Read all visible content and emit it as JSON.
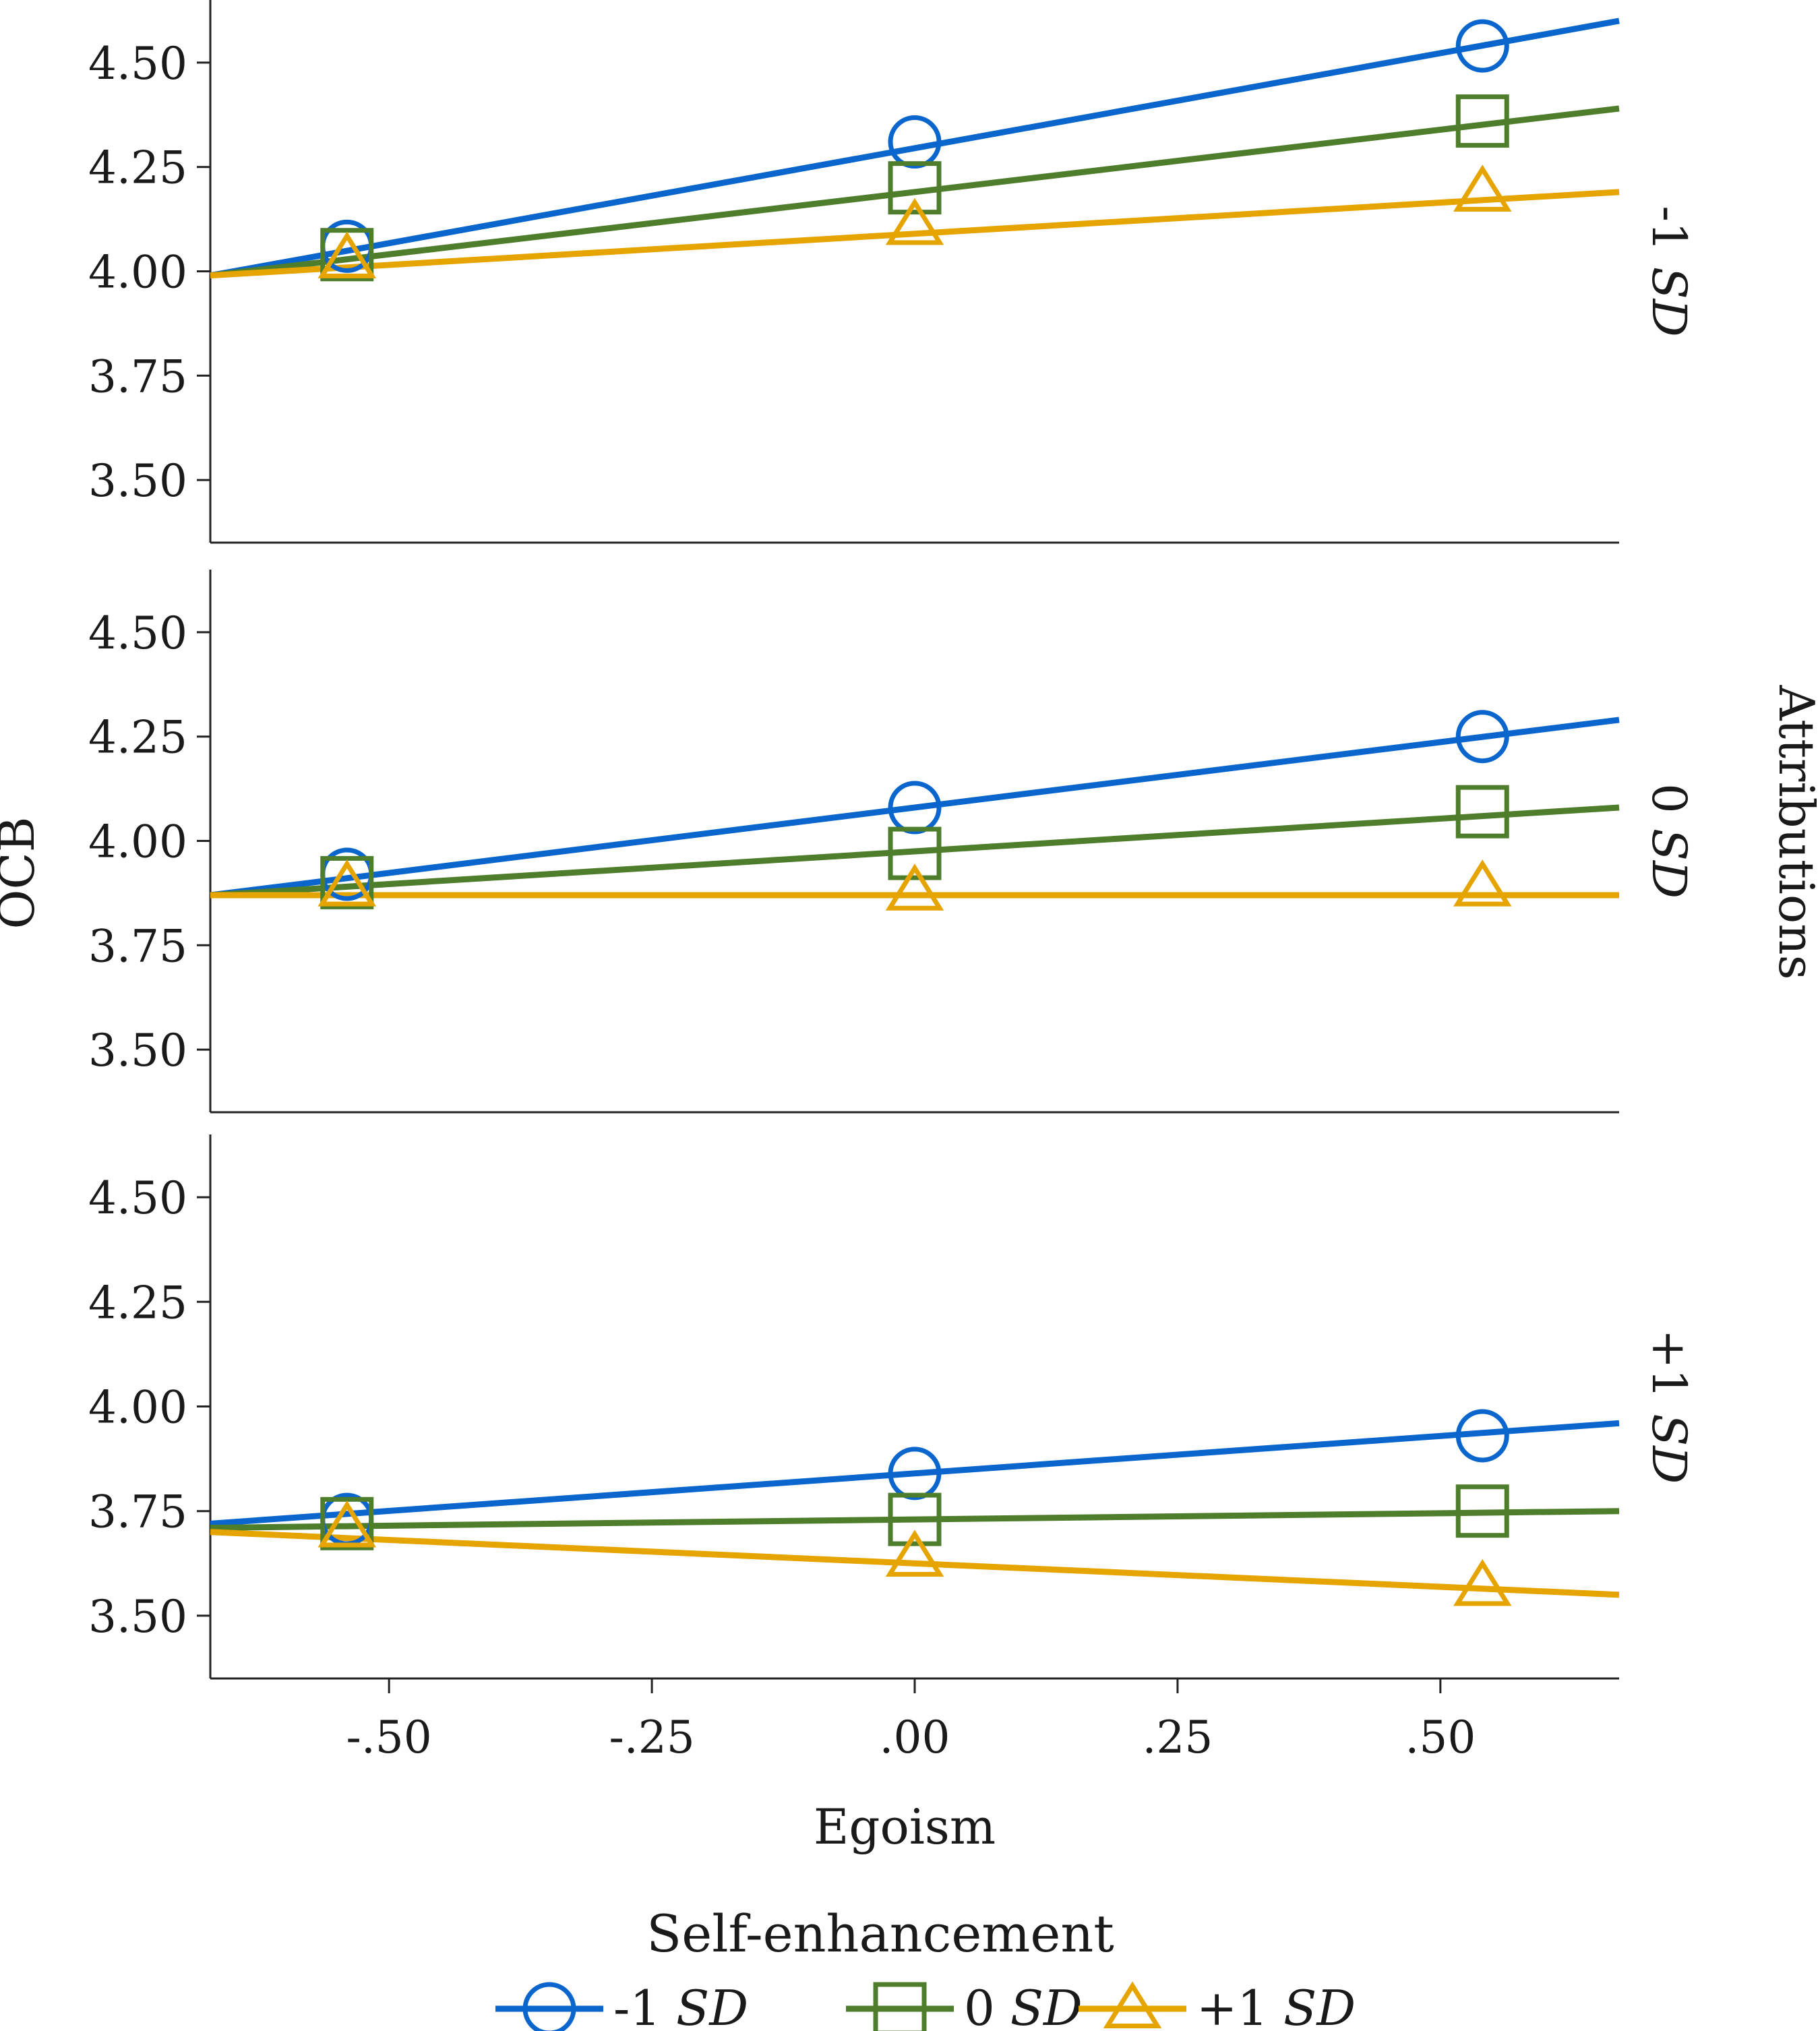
{
  "chart_data": {
    "type": "line",
    "xlabel": "Egoism",
    "ylabel": "OCB",
    "facet_title": "Attributions",
    "xlim": [
      -0.67,
      0.67
    ],
    "ylim": [
      3.35,
      4.65
    ],
    "x_ticks": [
      -0.5,
      -0.25,
      0.0,
      0.25,
      0.5
    ],
    "x_tick_labels": [
      "-.50",
      "-.25",
      ".00",
      ".25",
      ".50"
    ],
    "y_ticks": [
      3.5,
      3.75,
      4.0,
      4.25,
      4.5
    ],
    "y_tick_labels": [
      "3.50",
      "3.75",
      "4.00",
      "4.25",
      "4.50"
    ],
    "legend": {
      "title": "Self-enhancement",
      "placement": "bottom",
      "entries": [
        {
          "prefix": "-1 ",
          "unit": "SD",
          "color": "#0a66cc",
          "marker": "circle"
        },
        {
          "prefix": "0 ",
          "unit": "SD",
          "color": "#4e7d2c",
          "marker": "square"
        },
        {
          "prefix": "+1 ",
          "unit": "SD",
          "color": "#e6a400",
          "marker": "triangle"
        }
      ]
    },
    "marker_x": [
      -0.54,
      0.0,
      0.54
    ],
    "panels": [
      {
        "facet_prefix": "-1 ",
        "facet_unit": "SD",
        "series": [
          {
            "name": "-1 SD",
            "color": "#0a66cc",
            "marker": "circle",
            "line": [
              [
                -0.67,
                3.99
              ],
              [
                0.67,
                4.6
              ]
            ],
            "points": [
              4.06,
              4.31,
              4.54
            ]
          },
          {
            "name": "0 SD",
            "color": "#4e7d2c",
            "marker": "square",
            "line": [
              [
                -0.67,
                3.99
              ],
              [
                0.67,
                4.39
              ]
            ],
            "points": [
              4.04,
              4.2,
              4.36
            ]
          },
          {
            "name": "+1 SD",
            "color": "#e6a400",
            "marker": "triangle",
            "line": [
              [
                -0.67,
                3.99
              ],
              [
                0.67,
                4.19
              ]
            ],
            "points": [
              4.03,
              4.11,
              4.19
            ]
          }
        ]
      },
      {
        "facet_prefix": "0 ",
        "facet_unit": "SD",
        "series": [
          {
            "name": "-1 SD",
            "color": "#0a66cc",
            "marker": "circle",
            "line": [
              [
                -0.67,
                3.87
              ],
              [
                0.67,
                4.29
              ]
            ],
            "points": [
              3.92,
              4.08,
              4.25
            ]
          },
          {
            "name": "0 SD",
            "color": "#4e7d2c",
            "marker": "square",
            "line": [
              [
                -0.67,
                3.87
              ],
              [
                0.67,
                4.08
              ]
            ],
            "points": [
              3.9,
              3.97,
              4.07
            ]
          },
          {
            "name": "+1 SD",
            "color": "#e6a400",
            "marker": "triangle",
            "line": [
              [
                -0.67,
                3.87
              ],
              [
                0.67,
                3.87
              ]
            ],
            "points": [
              3.89,
              3.88,
              3.89
            ]
          }
        ]
      },
      {
        "facet_prefix": "+1 ",
        "facet_unit": "SD",
        "series": [
          {
            "name": "-1 SD",
            "color": "#0a66cc",
            "marker": "circle",
            "line": [
              [
                -0.67,
                3.72
              ],
              [
                0.67,
                3.96
              ]
            ],
            "points": [
              3.73,
              3.84,
              3.93
            ]
          },
          {
            "name": "0 SD",
            "color": "#4e7d2c",
            "marker": "square",
            "line": [
              [
                -0.67,
                3.71
              ],
              [
                0.67,
                3.75
              ]
            ],
            "points": [
              3.72,
              3.73,
              3.75
            ]
          },
          {
            "name": "+1 SD",
            "color": "#e6a400",
            "marker": "triangle",
            "line": [
              [
                -0.67,
                3.7
              ],
              [
                0.67,
                3.55
              ]
            ],
            "points": [
              3.71,
              3.64,
              3.57
            ]
          }
        ]
      }
    ]
  }
}
